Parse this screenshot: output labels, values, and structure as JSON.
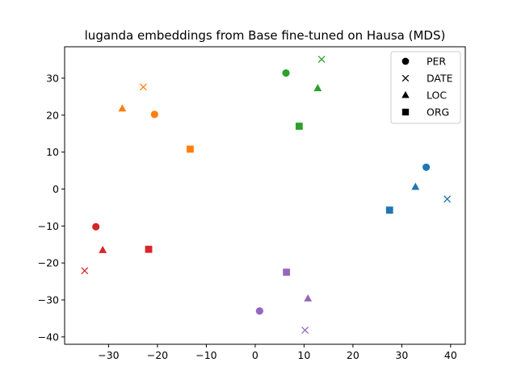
{
  "chart_data": {
    "type": "scatter",
    "title": "luganda embeddings from Base fine-tuned on Hausa (MDS)",
    "xlabel": "",
    "ylabel": "",
    "xlim": [
      -39,
      43
    ],
    "ylim": [
      -42,
      38.5
    ],
    "xticks": [
      -30,
      -20,
      -10,
      0,
      10,
      20,
      30,
      40
    ],
    "yticks": [
      -40,
      -30,
      -20,
      -10,
      0,
      10,
      20,
      30
    ],
    "xtick_labels": [
      "−30",
      "−20",
      "−10",
      "0",
      "10",
      "20",
      "30",
      "40"
    ],
    "ytick_labels": [
      "−40",
      "−30",
      "−20",
      "−10",
      "0",
      "10",
      "20",
      "30"
    ],
    "grid": false,
    "legend_placement": "top-right",
    "legend": [
      {
        "label": "PER",
        "marker": "circle"
      },
      {
        "label": "DATE",
        "marker": "x"
      },
      {
        "label": "LOC",
        "marker": "triangle"
      },
      {
        "label": "ORG",
        "marker": "square"
      }
    ],
    "points": [
      {
        "group": "blue",
        "color": "#1f77b4",
        "marker": "circle",
        "x": 35.0,
        "y": 5.9
      },
      {
        "group": "blue",
        "color": "#1f77b4",
        "marker": "x",
        "x": 39.3,
        "y": -2.7
      },
      {
        "group": "blue",
        "color": "#1f77b4",
        "marker": "triangle",
        "x": 32.8,
        "y": 0.6
      },
      {
        "group": "blue",
        "color": "#1f77b4",
        "marker": "square",
        "x": 27.5,
        "y": -5.7
      },
      {
        "group": "orange",
        "color": "#ff7f0e",
        "marker": "circle",
        "x": -20.6,
        "y": 20.2
      },
      {
        "group": "orange",
        "color": "#ff7f0e",
        "marker": "x",
        "x": -22.9,
        "y": 27.6
      },
      {
        "group": "orange",
        "color": "#ff7f0e",
        "marker": "triangle",
        "x": -27.2,
        "y": 21.8
      },
      {
        "group": "orange",
        "color": "#ff7f0e",
        "marker": "square",
        "x": -13.3,
        "y": 10.8
      },
      {
        "group": "green",
        "color": "#2ca02c",
        "marker": "circle",
        "x": 6.3,
        "y": 31.4
      },
      {
        "group": "green",
        "color": "#2ca02c",
        "marker": "x",
        "x": 13.6,
        "y": 35.1
      },
      {
        "group": "green",
        "color": "#2ca02c",
        "marker": "triangle",
        "x": 12.8,
        "y": 27.3
      },
      {
        "group": "green",
        "color": "#2ca02c",
        "marker": "square",
        "x": 9.0,
        "y": 17.0
      },
      {
        "group": "red",
        "color": "#d62728",
        "marker": "circle",
        "x": -32.6,
        "y": -10.2
      },
      {
        "group": "red",
        "color": "#d62728",
        "marker": "x",
        "x": -34.9,
        "y": -22.1
      },
      {
        "group": "red",
        "color": "#d62728",
        "marker": "triangle",
        "x": -31.2,
        "y": -16.5
      },
      {
        "group": "red",
        "color": "#d62728",
        "marker": "square",
        "x": -21.8,
        "y": -16.3
      },
      {
        "group": "purple",
        "color": "#9467bd",
        "marker": "circle",
        "x": 0.9,
        "y": -33.0
      },
      {
        "group": "purple",
        "color": "#9467bd",
        "marker": "x",
        "x": 10.2,
        "y": -38.2
      },
      {
        "group": "purple",
        "color": "#9467bd",
        "marker": "triangle",
        "x": 10.8,
        "y": -29.6
      },
      {
        "group": "purple",
        "color": "#9467bd",
        "marker": "square",
        "x": 6.4,
        "y": -22.5
      }
    ]
  }
}
